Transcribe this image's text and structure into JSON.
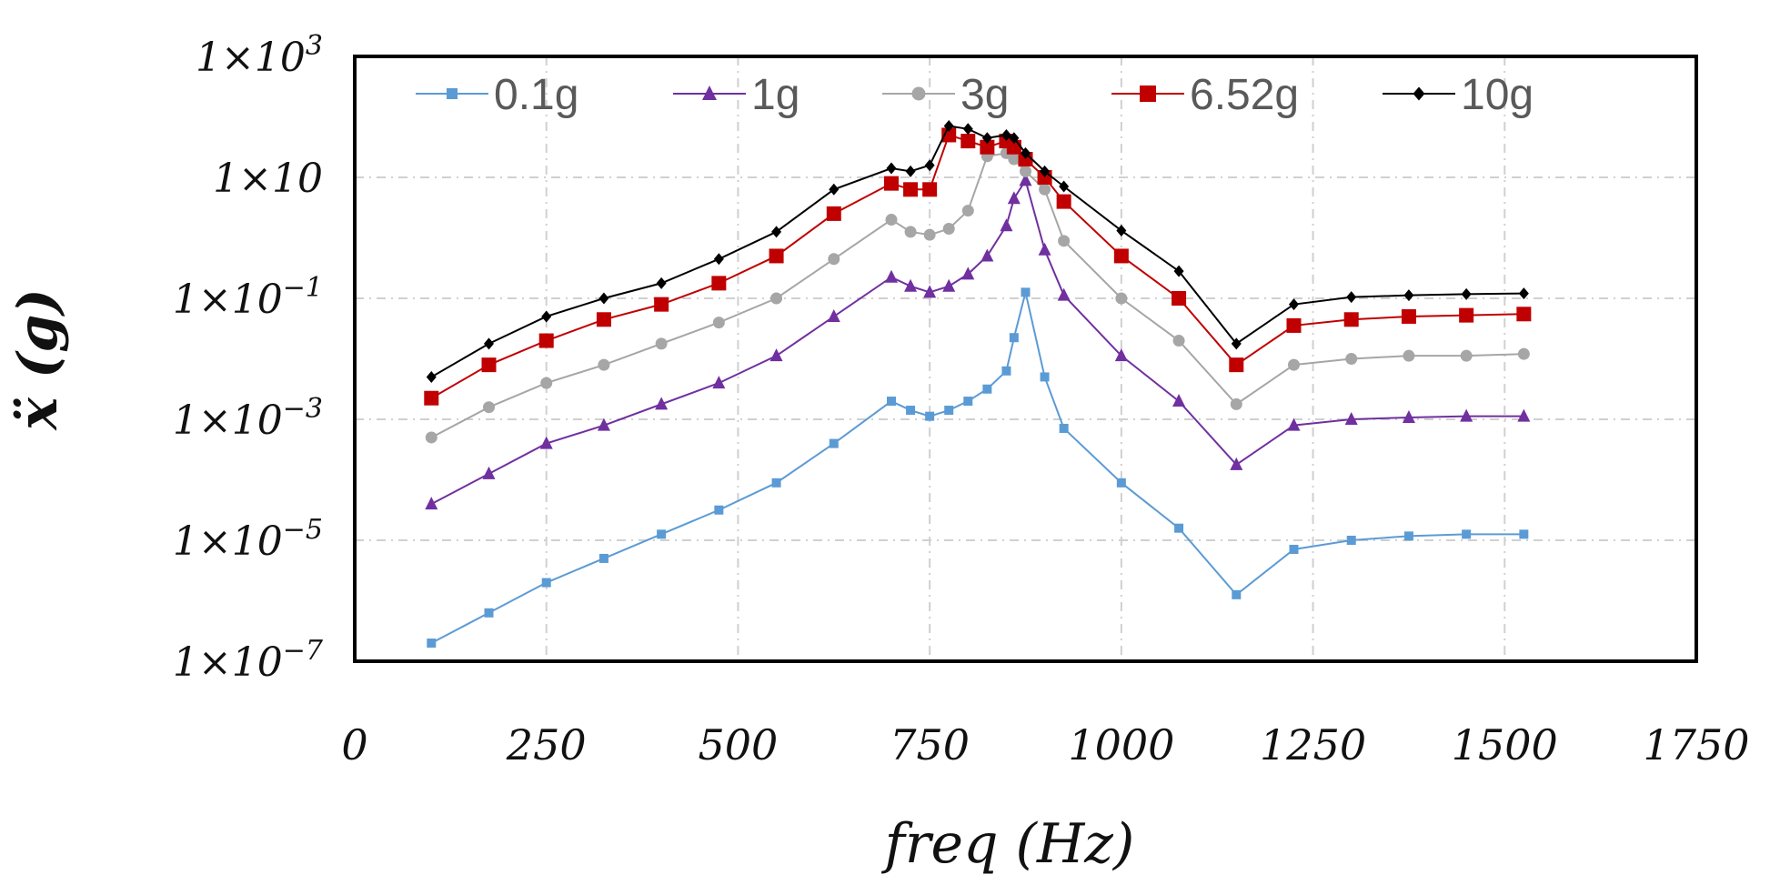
{
  "chart_data": {
    "type": "line",
    "title": "",
    "xlabel": "freq (Hz)",
    "ylabel": "ẍ (g)",
    "yscale": "log",
    "xlim": [
      0,
      1750
    ],
    "ylim_log10": [
      -7,
      3
    ],
    "grid": true,
    "legend_position": "top",
    "x_tick_values": [
      0,
      250,
      500,
      750,
      1000,
      1250,
      1500,
      1750
    ],
    "x_tick_labels": [
      "0",
      "250",
      "500",
      "750",
      "1000",
      "1250",
      "1500",
      "1750"
    ],
    "y_tick_exponents": [
      3,
      1,
      -1,
      -3,
      -5,
      -7
    ],
    "y_tick_labels": [
      {
        "base": "1×10",
        "exp": "3"
      },
      {
        "base": "1×10",
        "exp": ""
      },
      {
        "base": "1×10",
        "exp": "−1"
      },
      {
        "base": "1×10",
        "exp": "−3"
      },
      {
        "base": "1×10",
        "exp": "−5"
      },
      {
        "base": "1×10",
        "exp": "−7"
      }
    ],
    "x": [
      100,
      175,
      250,
      325,
      400,
      475,
      550,
      625,
      700,
      725,
      750,
      775,
      800,
      825,
      850,
      860,
      875,
      900,
      925,
      1000,
      1075,
      1150,
      1225,
      1300,
      1375,
      1450,
      1525
    ],
    "series": [
      {
        "name": "0.1g",
        "color": "#5B9BD5",
        "marker": "square",
        "size": 10,
        "values": [
          -6.7,
          -6.2,
          -5.7,
          -5.3,
          -4.9,
          -4.5,
          -4.05,
          -3.4,
          -2.7,
          -2.85,
          -2.95,
          -2.85,
          -2.7,
          -2.5,
          -2.2,
          -1.65,
          -0.9,
          -2.3,
          -3.15,
          -4.05,
          -4.8,
          -5.9,
          -5.15,
          -5.0,
          -4.93,
          -4.9,
          -4.9
        ]
      },
      {
        "name": "1g",
        "color": "#7030A0",
        "marker": "triangle",
        "size": 12,
        "values": [
          -4.4,
          -3.9,
          -3.4,
          -3.1,
          -2.75,
          -2.4,
          -1.95,
          -1.3,
          -0.65,
          -0.8,
          -0.9,
          -0.8,
          -0.6,
          -0.3,
          0.2,
          0.65,
          0.95,
          -0.2,
          -0.95,
          -1.95,
          -2.7,
          -3.75,
          -3.1,
          -3.0,
          -2.97,
          -2.95,
          -2.95
        ]
      },
      {
        "name": "3g",
        "color": "#A6A6A6",
        "marker": "circle",
        "size": 11,
        "values": [
          -3.3,
          -2.8,
          -2.4,
          -2.1,
          -1.75,
          -1.4,
          -1.0,
          -0.35,
          0.3,
          0.1,
          0.05,
          0.15,
          0.45,
          1.35,
          1.4,
          1.3,
          1.1,
          0.8,
          -0.05,
          -1.0,
          -1.7,
          -2.75,
          -2.1,
          -2.0,
          -1.95,
          -1.95,
          -1.92
        ]
      },
      {
        "name": "6.52g",
        "color": "#C00000",
        "marker": "square",
        "size": 16,
        "values": [
          -2.65,
          -2.1,
          -1.7,
          -1.35,
          -1.1,
          -0.75,
          -0.3,
          0.4,
          0.9,
          0.8,
          0.8,
          1.7,
          1.6,
          1.5,
          1.6,
          1.5,
          1.3,
          1.0,
          0.6,
          -0.3,
          -1.0,
          -2.1,
          -1.45,
          -1.35,
          -1.3,
          -1.28,
          -1.26
        ]
      },
      {
        "name": "10g",
        "color": "#000000",
        "marker": "diamond",
        "size": 11,
        "values": [
          -2.3,
          -1.75,
          -1.3,
          -1.0,
          -0.75,
          -0.35,
          0.1,
          0.8,
          1.15,
          1.1,
          1.2,
          1.85,
          1.8,
          1.65,
          1.7,
          1.65,
          1.4,
          1.1,
          0.85,
          0.12,
          -0.55,
          -1.75,
          -1.1,
          -0.98,
          -0.95,
          -0.93,
          -0.92
        ]
      }
    ]
  }
}
